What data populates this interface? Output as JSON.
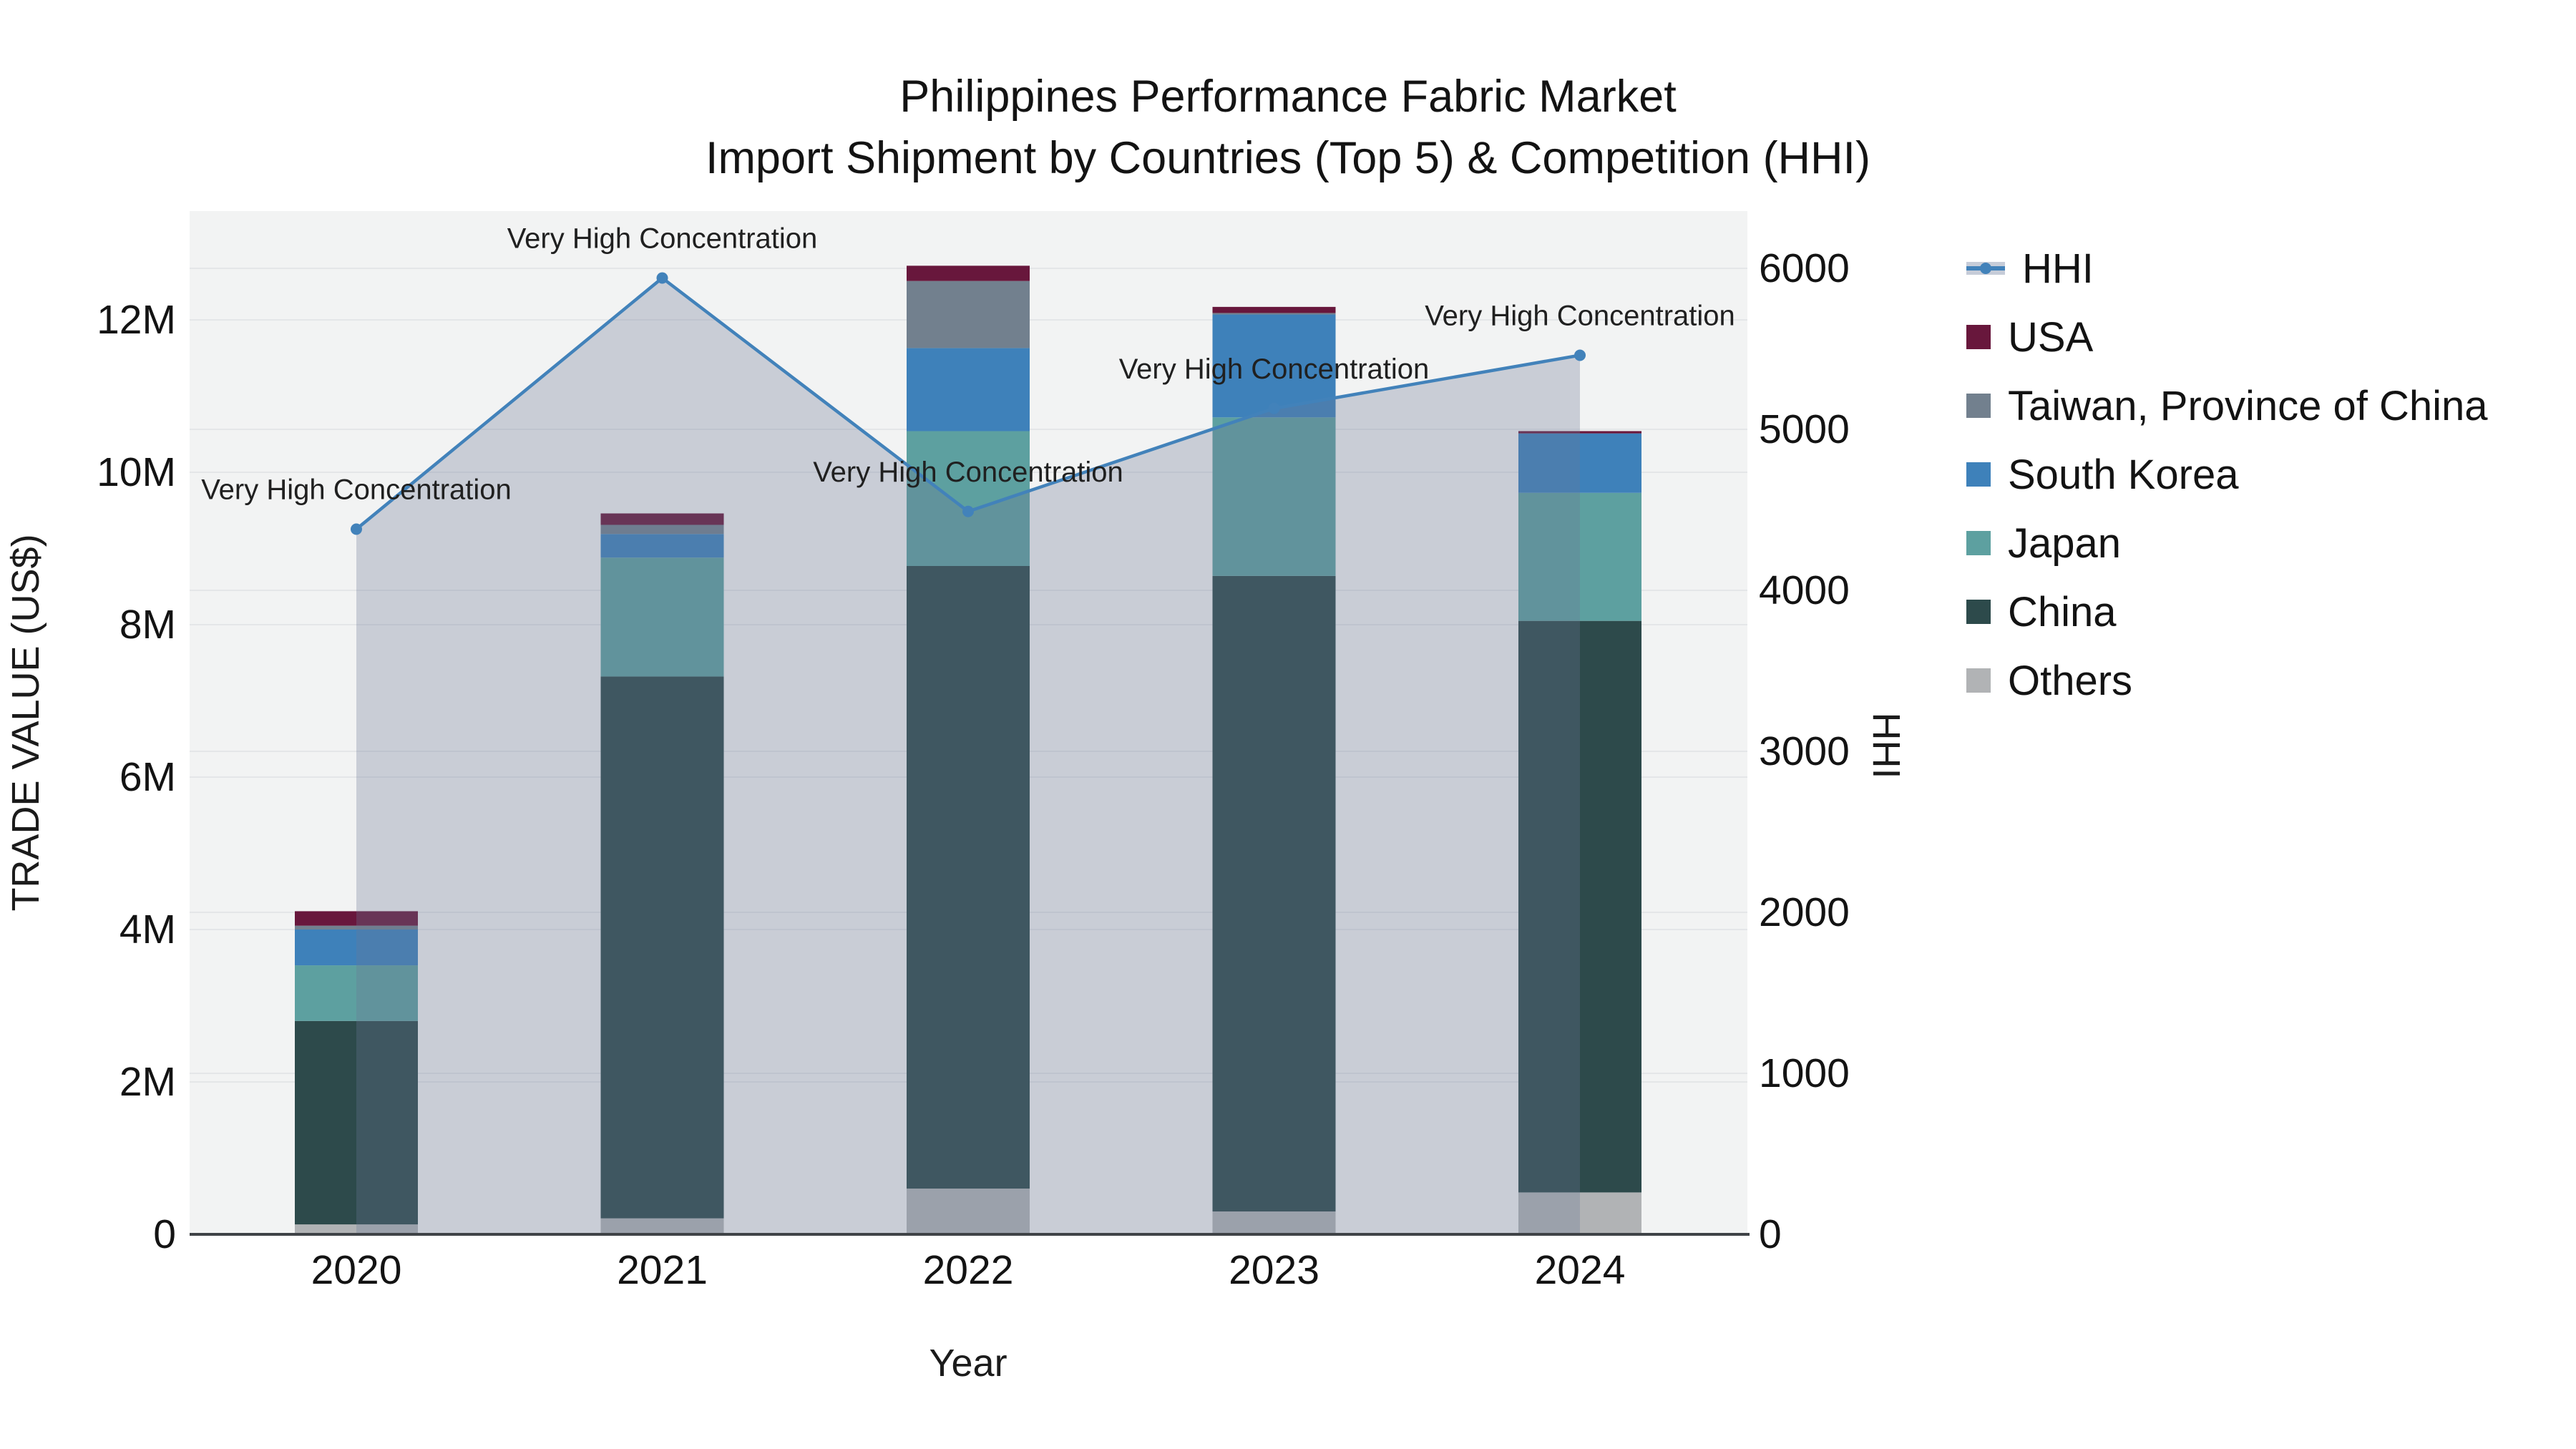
{
  "title": {
    "line1": "Philippines Performance Fabric Market",
    "line2": "Import Shipment by Countries (Top 5) & Competition (HHI)"
  },
  "chart_data": {
    "type": "bar",
    "subtype": "stacked-bars-with-line-overlay",
    "categories": [
      "2020",
      "2021",
      "2022",
      "2023",
      "2024"
    ],
    "values_unit": "million US$ (left axis), HHI index (right axis)",
    "series": [
      {
        "name": "Others",
        "color": "#b1b3b5",
        "values": [
          0.13,
          0.21,
          0.6,
          0.3,
          0.55
        ]
      },
      {
        "name": "China",
        "color": "#2d4a4b",
        "values": [
          2.67,
          7.11,
          8.17,
          8.34,
          7.5
        ]
      },
      {
        "name": "Japan",
        "color": "#5da0a0",
        "values": [
          0.73,
          1.56,
          1.77,
          2.08,
          1.68
        ]
      },
      {
        "name": "South Korea",
        "color": "#3e81ba",
        "values": [
          0.47,
          0.31,
          1.09,
          1.35,
          0.78
        ]
      },
      {
        "name": "Taiwan, Province of China",
        "color": "#72808e",
        "values": [
          0.05,
          0.12,
          0.88,
          0.02,
          0.0
        ]
      },
      {
        "name": "USA",
        "color": "#68173c",
        "values": [
          0.19,
          0.15,
          0.2,
          0.08,
          0.03
        ]
      }
    ],
    "line_series": {
      "name": "HHI",
      "color": "#4282ba",
      "area_fill": "rgba(105,120,150,0.30)",
      "values": [
        4380,
        5940,
        4490,
        5130,
        5460
      ]
    },
    "annotations": [
      "Very High Concentration",
      "Very High Concentration",
      "Very High Concentration",
      "Very High Concentration",
      "Very High Concentration"
    ],
    "y_left": {
      "title": "TRADE VALUE (US$)",
      "ticks": [
        "0",
        "2M",
        "4M",
        "6M",
        "8M",
        "10M",
        "12M"
      ],
      "tick_step_millions": 2
    },
    "y_right": {
      "title": "HHI",
      "ticks": [
        "0",
        "1000",
        "2000",
        "3000",
        "4000",
        "5000",
        "6000"
      ],
      "tick_step": 1000
    },
    "x": {
      "title": "Year"
    },
    "grid": true,
    "legend_position": "right"
  },
  "legend": {
    "items": [
      {
        "label": "HHI",
        "type": "line"
      },
      {
        "label": "USA",
        "type": "square"
      },
      {
        "label": "Taiwan, Province of China",
        "type": "square"
      },
      {
        "label": "South Korea",
        "type": "square"
      },
      {
        "label": "Japan",
        "type": "square"
      },
      {
        "label": "China",
        "type": "square"
      },
      {
        "label": "Others",
        "type": "square"
      }
    ]
  },
  "colors": {
    "plot_background": "#f2f3f3",
    "gridline": "#e4e6e8",
    "axis_line": "#3f4347",
    "text": "#131313"
  }
}
